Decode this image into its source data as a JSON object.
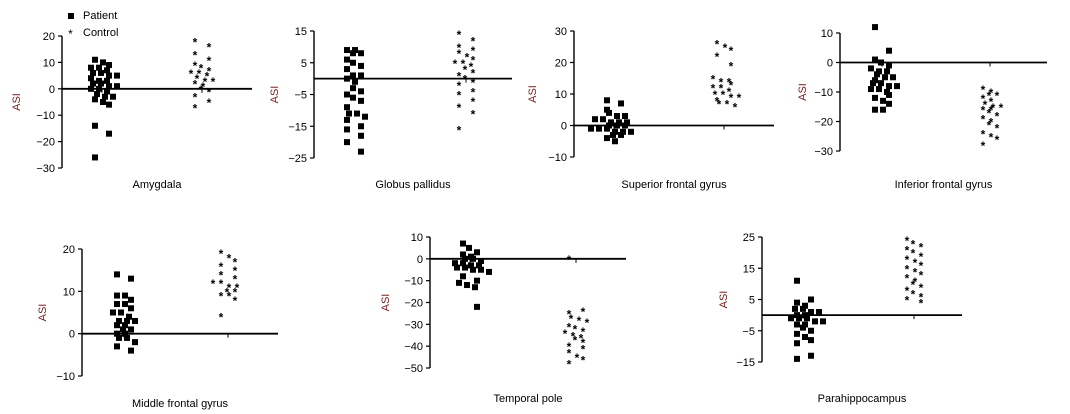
{
  "legend": {
    "patient_label": "Patient",
    "control_label": "Control"
  },
  "chart_data": [
    {
      "type": "scatter",
      "title": "Amygdala",
      "ylabel": "ASI",
      "ylim": [
        -30,
        20
      ],
      "ticks": [
        -30,
        -20,
        -10,
        0,
        10,
        20
      ],
      "series": [
        {
          "name": "Patient",
          "marker": "square",
          "values": [
            11,
            10,
            9,
            8,
            8,
            7,
            6,
            6,
            5,
            5,
            4,
            3,
            3,
            2,
            2,
            1,
            1,
            0,
            0,
            -1,
            -2,
            -3,
            -3,
            -4,
            -5,
            -6,
            -14,
            -17,
            -26
          ]
        },
        {
          "name": "Control",
          "marker": "star",
          "values": [
            18,
            16,
            13,
            11,
            9,
            8,
            7,
            6,
            6,
            5,
            4,
            3,
            3,
            2,
            1,
            0,
            -1,
            -3,
            -5,
            -7
          ]
        }
      ]
    },
    {
      "type": "scatter",
      "title": "Globus pallidus",
      "ylabel": "ASI",
      "ylim": [
        -25,
        15
      ],
      "ticks": [
        -25,
        -15,
        -5,
        5,
        15
      ],
      "series": [
        {
          "name": "Patient",
          "marker": "square",
          "values": [
            9,
            9,
            8,
            8,
            6,
            5,
            4,
            3,
            1,
            1,
            0,
            -1,
            -3,
            -4,
            -5,
            -6,
            -7,
            -9,
            -11,
            -11,
            -12,
            -13,
            -15,
            -16,
            -18,
            -20,
            -23
          ]
        },
        {
          "name": "Control",
          "marker": "star",
          "values": [
            14,
            12,
            10,
            9,
            8,
            7,
            6,
            5,
            5,
            4,
            3,
            2,
            1,
            0,
            -1,
            -2,
            -4,
            -5,
            -7,
            -9,
            -11,
            -16
          ]
        }
      ]
    },
    {
      "type": "scatter",
      "title": "Superior frontal gyrus",
      "ylabel": "ASI",
      "ylim": [
        -10,
        30
      ],
      "ticks": [
        -10,
        0,
        10,
        20,
        30
      ],
      "series": [
        {
          "name": "Patient",
          "marker": "square",
          "values": [
            8,
            7,
            5,
            4,
            3,
            3,
            2,
            2,
            1,
            1,
            1,
            0,
            0,
            0,
            -1,
            -1,
            -1,
            -2,
            -2,
            -2,
            -3,
            -3,
            -4,
            -5
          ]
        },
        {
          "name": "Control",
          "marker": "star",
          "values": [
            26,
            25,
            24,
            22,
            19,
            15,
            14,
            14,
            13,
            12,
            12,
            11,
            10,
            10,
            9,
            9,
            8,
            7,
            7,
            6
          ]
        }
      ]
    },
    {
      "type": "scatter",
      "title": "Inferior frontal gyrus",
      "ylabel": "ASI",
      "ylim": [
        -30,
        10
      ],
      "ticks": [
        -30,
        -20,
        -10,
        0,
        10
      ],
      "series": [
        {
          "name": "Patient",
          "marker": "square",
          "values": [
            12,
            4,
            1,
            0,
            -1,
            -2,
            -3,
            -3,
            -4,
            -5,
            -5,
            -6,
            -7,
            -7,
            -8,
            -8,
            -9,
            -9,
            -10,
            -11,
            -12,
            -13,
            -14,
            -16,
            -16
          ]
        },
        {
          "name": "Control",
          "marker": "star",
          "values": [
            -9,
            -10,
            -11,
            -11,
            -12,
            -13,
            -14,
            -15,
            -15,
            -16,
            -16,
            -17,
            -18,
            -19,
            -20,
            -21,
            -22,
            -24,
            -25,
            -26,
            -28
          ]
        }
      ]
    },
    {
      "type": "scatter",
      "title": "Middle frontal gyrus",
      "ylabel": "ASI",
      "ylim": [
        -10,
        20
      ],
      "ticks": [
        -10,
        0,
        10,
        20
      ],
      "series": [
        {
          "name": "Patient",
          "marker": "square",
          "values": [
            14,
            13,
            9,
            9,
            8,
            7,
            7,
            6,
            5,
            5,
            4,
            3,
            3,
            3,
            2,
            2,
            1,
            1,
            0,
            0,
            -1,
            -1,
            -2,
            -3,
            -4
          ]
        },
        {
          "name": "Control",
          "marker": "star",
          "values": [
            19,
            18,
            17,
            16,
            15,
            14,
            13,
            12,
            12,
            11,
            11,
            10,
            10,
            9,
            9,
            8,
            4
          ]
        }
      ]
    },
    {
      "type": "scatter",
      "title": "Temporal pole",
      "ylabel": "ASI",
      "ylim": [
        -50,
        10
      ],
      "ticks": [
        -50,
        -40,
        -30,
        -20,
        -10,
        0,
        10
      ],
      "series": [
        {
          "name": "Patient",
          "marker": "square",
          "values": [
            7,
            5,
            3,
            2,
            1,
            0,
            0,
            -1,
            -2,
            -2,
            -3,
            -3,
            -4,
            -4,
            -5,
            -5,
            -6,
            -8,
            -10,
            -11,
            -12,
            -13,
            -22
          ]
        },
        {
          "name": "Control",
          "marker": "star",
          "values": [
            0,
            -24,
            -25,
            -27,
            -28,
            -29,
            -31,
            -32,
            -33,
            -34,
            -35,
            -36,
            -37,
            -38,
            -40,
            -41,
            -43,
            -45,
            -46,
            -48
          ]
        }
      ]
    },
    {
      "type": "scatter",
      "title": "Parahippocampus",
      "ylabel": "ASI",
      "ylim": [
        -15,
        25
      ],
      "ticks": [
        -15,
        -5,
        5,
        15,
        25
      ],
      "series": [
        {
          "name": "Patient",
          "marker": "square",
          "values": [
            11,
            5,
            4,
            3,
            2,
            2,
            1,
            1,
            0,
            0,
            -1,
            -1,
            -1,
            -2,
            -2,
            -3,
            -3,
            -4,
            -5,
            -6,
            -7,
            -8,
            -9,
            -13,
            -14
          ]
        },
        {
          "name": "Control",
          "marker": "star",
          "values": [
            24,
            23,
            22,
            21,
            20,
            19,
            18,
            17,
            16,
            15,
            14,
            13,
            12,
            11,
            10,
            9,
            8,
            7,
            6,
            5,
            4
          ]
        }
      ]
    }
  ]
}
